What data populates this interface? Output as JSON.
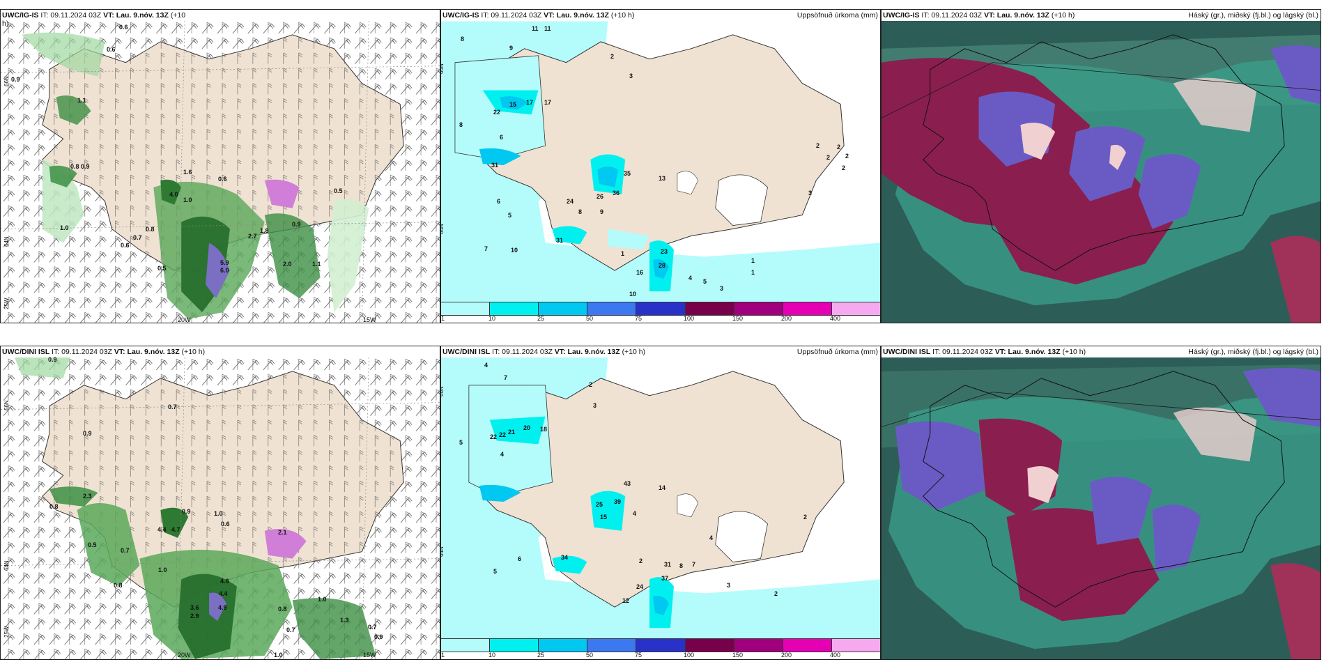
{
  "panels": [
    {
      "id": "top-wind",
      "row": 0,
      "col": 0,
      "model": "UWC/IG-IS",
      "it": "IT: 09.11.2024 03Z",
      "vt": "VT: Lau. 9.nóv. 13Z",
      "lead": "(+10",
      "lead2": "h)",
      "right_title": "",
      "kind": "wind"
    },
    {
      "id": "top-precip",
      "row": 0,
      "col": 1,
      "model": "UWC/IG-IS",
      "it": "IT: 09.11.2024 03Z",
      "vt": "VT: Lau. 9.nóv. 13Z",
      "lead": "(+10 h)",
      "right_title": "Uppsöfnuð úrkoma (mm)",
      "kind": "precip"
    },
    {
      "id": "top-cloud",
      "row": 0,
      "col": 2,
      "model": "UWC/IG-IS",
      "it": "IT: 09.11.2024 03Z",
      "vt": "VT: Lau. 9.nóv. 13Z",
      "lead": "(+10 h)",
      "right_title": "Háský (gr.), miðský (fj.bl.) og lágský (bl.)",
      "kind": "cloud"
    },
    {
      "id": "bottom-wind",
      "row": 1,
      "col": 0,
      "model": "UWC/DINI ISL",
      "it": "IT: 09.11.2024 03Z",
      "vt": "VT: Lau. 9.nóv. 13Z",
      "lead": "(+10 h)",
      "right_title": "",
      "kind": "wind"
    },
    {
      "id": "bottom-precip",
      "row": 1,
      "col": 1,
      "model": "UWC/DINI ISL",
      "it": "IT: 09.11.2024 03Z",
      "vt": "VT: Lau. 9.nóv. 13Z",
      "lead": "(+10 h)",
      "right_title": "Uppsöfnuð úrkoma (mm)",
      "kind": "precip"
    },
    {
      "id": "bottom-cloud",
      "row": 1,
      "col": 2,
      "model": "UWC/DINI ISL",
      "it": "IT: 09.11.2024 03Z",
      "vt": "VT: Lau. 9.nóv. 13Z",
      "lead": "(+10 h)",
      "right_title": "Háský (gr.), miðský (fj.bl.) og lágský (bl.)",
      "kind": "cloud"
    }
  ],
  "axes": {
    "lat66": "66N",
    "lat64": "64N",
    "lon25": "25W",
    "lon20": "20W",
    "lon15": "15W"
  },
  "legend": {
    "ticks": [
      "1",
      "10",
      "25",
      "50",
      "75",
      "100",
      "150",
      "200",
      "400"
    ],
    "colors": [
      "#b4fcfc",
      "#00f0f0",
      "#00c8f0",
      "#3c78f0",
      "#2832c8",
      "#78004b",
      "#a0007d",
      "#e600b4",
      "#f5aaf0"
    ]
  },
  "wind_values_top": [
    "0.6",
    "0.9",
    "0.6",
    "1.1",
    "0.8",
    "0.9",
    "1.6",
    "4.0",
    "1.0",
    "1.0",
    "0.8",
    "0.7",
    "0.6",
    "0.5",
    "5.9",
    "6.0",
    "2.0",
    "2.7",
    "1.8",
    "0.6",
    "0.5",
    "0.9",
    "1.1"
  ],
  "wind_values_bottom": [
    "0.9",
    "0.7",
    "0.9",
    "0.8",
    "2.3",
    "1.0",
    "0.9",
    "4.4",
    "4.7",
    "2.1",
    "0.6",
    "0.5",
    "0.7",
    "1.0",
    "0.8",
    "4.8",
    "4.4",
    "4.9",
    "3.6",
    "2.9",
    "1.0",
    "0.8",
    "0.7",
    "1.0",
    "1.3",
    "0.7",
    "0.9"
  ],
  "precip_values_top": [
    "11",
    "11",
    "8",
    "9",
    "2",
    "22",
    "15",
    "17",
    "17",
    "8",
    "6",
    "3",
    "31",
    "35",
    "13",
    "26",
    "36",
    "24",
    "6",
    "5",
    "8",
    "9",
    "31",
    "10",
    "7",
    "1",
    "23",
    "28",
    "10",
    "16",
    "4",
    "5",
    "3",
    "1",
    "1",
    "2",
    "2",
    "2",
    "2",
    "2",
    "3"
  ],
  "precip_values_bottom": [
    "4",
    "7",
    "22",
    "22",
    "21",
    "20",
    "18",
    "5",
    "4",
    "2",
    "3",
    "43",
    "14",
    "39",
    "25",
    "15",
    "4",
    "34",
    "6",
    "5",
    "2",
    "31",
    "37",
    "24",
    "12",
    "8",
    "7",
    "3",
    "2",
    "4",
    "2"
  ]
}
